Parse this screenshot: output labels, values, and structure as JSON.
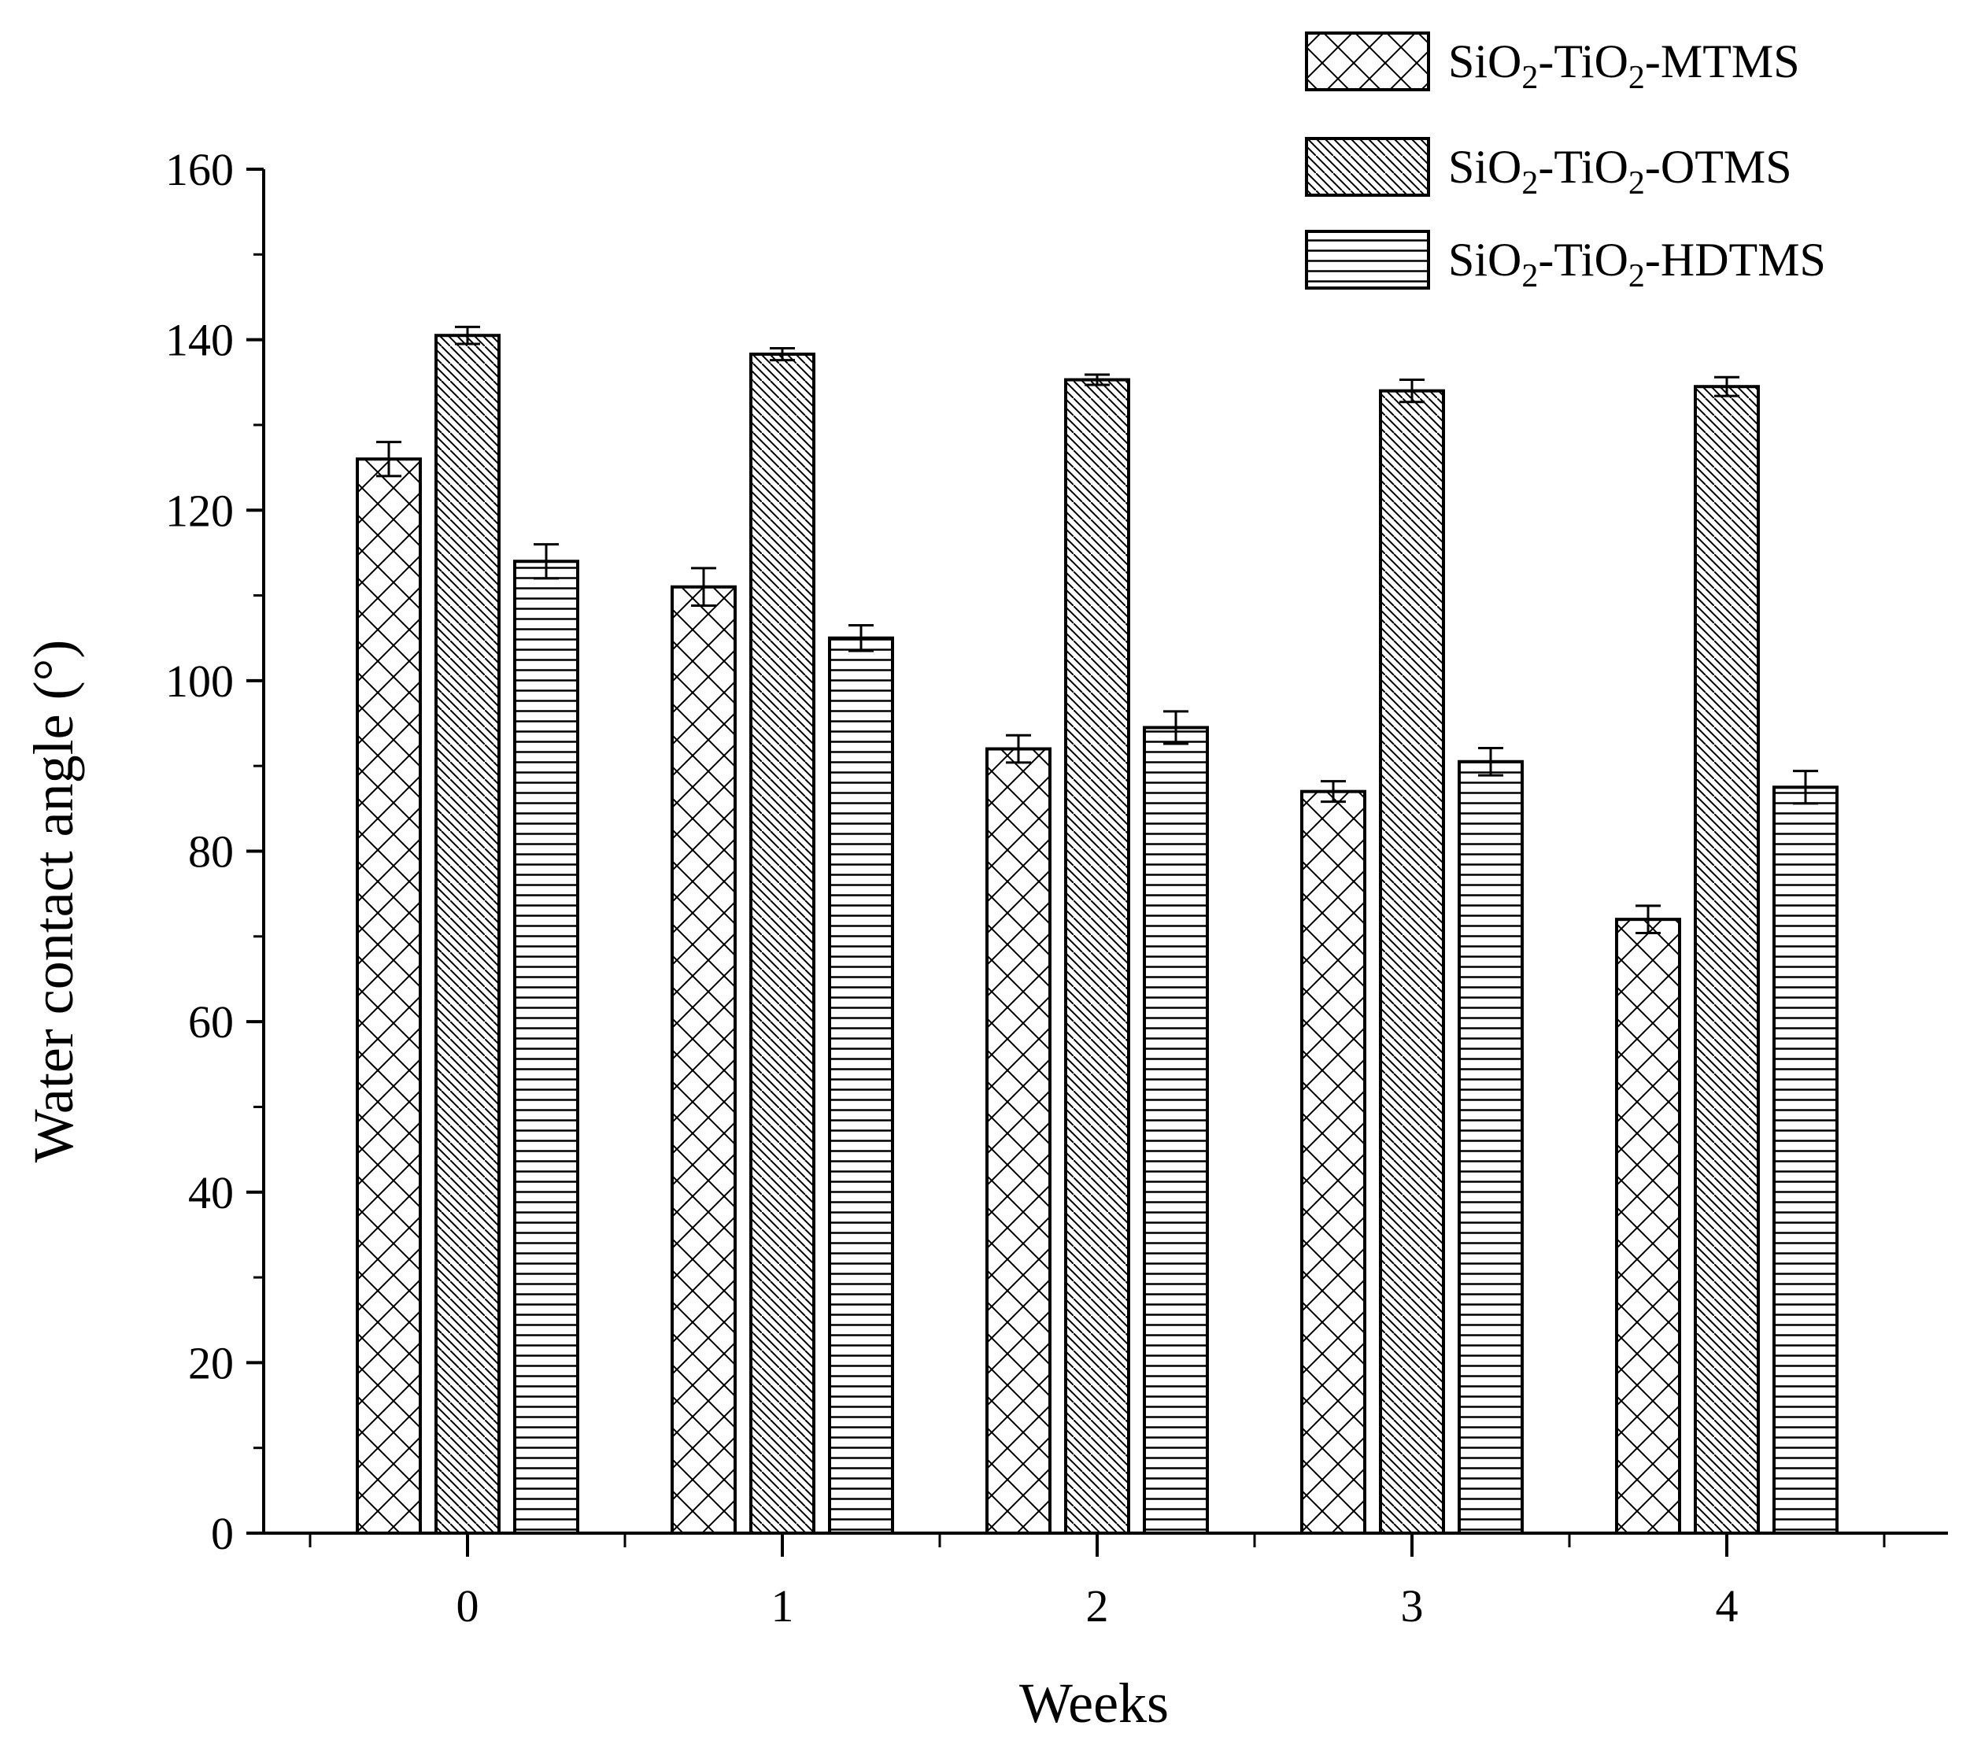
{
  "chart_data": {
    "type": "bar",
    "title": "",
    "xlabel": "Weeks",
    "ylabel": "Water contact angle (°)",
    "categories": [
      "0",
      "1",
      "2",
      "3",
      "4"
    ],
    "ylim": [
      0,
      160
    ],
    "yticks": [
      "0",
      "20",
      "40",
      "60",
      "80",
      "100",
      "120",
      "140",
      "160"
    ],
    "legend_position": "top-right",
    "series": [
      {
        "name": "SiO2-TiO2-MTMS",
        "legend_parts": [
          "SiO",
          "2",
          "-TiO",
          "2",
          "-MTMS"
        ],
        "pattern": "crosshatch",
        "values": [
          126,
          111,
          92,
          87,
          72
        ],
        "errors": [
          2.0,
          2.2,
          1.6,
          1.2,
          1.6
        ]
      },
      {
        "name": "SiO2-TiO2-OTMS",
        "legend_parts": [
          "SiO",
          "2",
          "-TiO",
          "2",
          "-OTMS"
        ],
        "pattern": "diagonal",
        "values": [
          140.5,
          138.3,
          135.3,
          134,
          134.5
        ],
        "errors": [
          1.0,
          0.7,
          0.6,
          1.3,
          1.1
        ]
      },
      {
        "name": "SiO2-TiO2-HDTMS",
        "legend_parts": [
          "SiO",
          "2",
          "-TiO",
          "2",
          "-HDTMS"
        ],
        "pattern": "horizontal",
        "values": [
          114,
          105,
          94.5,
          90.5,
          87.5
        ],
        "errors": [
          2.0,
          1.5,
          1.9,
          1.6,
          1.9
        ]
      }
    ]
  }
}
